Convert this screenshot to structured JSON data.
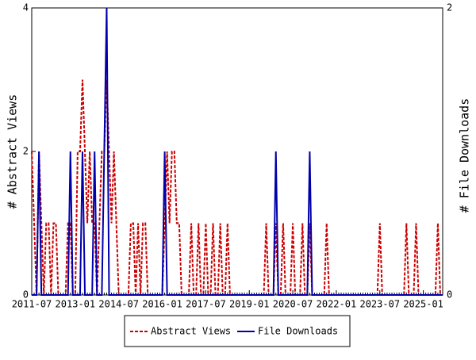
{
  "chart_data": {
    "type": "line",
    "x": [
      "2011-07",
      "2011-08",
      "2011-09",
      "2011-10",
      "2011-11",
      "2011-12",
      "2012-01",
      "2012-02",
      "2012-03",
      "2012-04",
      "2012-05",
      "2012-06",
      "2012-07",
      "2012-08",
      "2012-09",
      "2012-10",
      "2012-11",
      "2012-12",
      "2013-01",
      "2013-02",
      "2013-03",
      "2013-04",
      "2013-05",
      "2013-06",
      "2013-07",
      "2013-08",
      "2013-09",
      "2013-10",
      "2013-11",
      "2013-12",
      "2014-01",
      "2014-02",
      "2014-03",
      "2014-04",
      "2014-05",
      "2014-06",
      "2014-07",
      "2014-08",
      "2014-09",
      "2014-10",
      "2014-11",
      "2014-12",
      "2015-01",
      "2015-02",
      "2015-03",
      "2015-04",
      "2015-05",
      "2015-06",
      "2015-07",
      "2015-08",
      "2015-09",
      "2015-10",
      "2015-11",
      "2015-12",
      "2016-01",
      "2016-02",
      "2016-03",
      "2016-04",
      "2016-05",
      "2016-06",
      "2016-07",
      "2016-08",
      "2016-09",
      "2016-10",
      "2016-11",
      "2016-12",
      "2017-01",
      "2017-02",
      "2017-03",
      "2017-04",
      "2017-05",
      "2017-06",
      "2017-07",
      "2017-08",
      "2017-09",
      "2017-10",
      "2017-11",
      "2017-12",
      "2018-01",
      "2018-02",
      "2018-03",
      "2018-04",
      "2018-05",
      "2018-06",
      "2018-07",
      "2018-08",
      "2018-09",
      "2018-10",
      "2018-11",
      "2018-12",
      "2019-01",
      "2019-02",
      "2019-03",
      "2019-04",
      "2019-05",
      "2019-06",
      "2019-07",
      "2019-08",
      "2019-09",
      "2019-10",
      "2019-11",
      "2019-12",
      "2020-01",
      "2020-02",
      "2020-03",
      "2020-04",
      "2020-05",
      "2020-06",
      "2020-07",
      "2020-08",
      "2020-09",
      "2020-10",
      "2020-11",
      "2020-12",
      "2021-01",
      "2021-02",
      "2021-03",
      "2021-04",
      "2021-05",
      "2021-06",
      "2021-07",
      "2021-08",
      "2021-09",
      "2021-10",
      "2021-11",
      "2021-12",
      "2022-01",
      "2022-02",
      "2022-03",
      "2022-04",
      "2022-05",
      "2022-06",
      "2022-07",
      "2022-08",
      "2022-09",
      "2022-10",
      "2022-11",
      "2022-12",
      "2023-01",
      "2023-02",
      "2023-03",
      "2023-04",
      "2023-05",
      "2023-06",
      "2023-07",
      "2023-08",
      "2023-09",
      "2023-10",
      "2023-11",
      "2023-12",
      "2024-01",
      "2024-02",
      "2024-03",
      "2024-04",
      "2024-05",
      "2024-06",
      "2024-07",
      "2024-08",
      "2024-09",
      "2024-10",
      "2024-11",
      "2024-12",
      "2025-01",
      "2025-02",
      "2025-03",
      "2025-04",
      "2025-05",
      "2025-06",
      "2025-07",
      "2025-08",
      "2025-09"
    ],
    "xticks": [
      "2011-07",
      "2013-01",
      "2014-07",
      "2016-01",
      "2017-07",
      "2019-01",
      "2020-07",
      "2022-01",
      "2023-07",
      "2025-01"
    ],
    "ylabel": "# Abstract Views",
    "y2label": "# File Downloads",
    "ylim": [
      0,
      4
    ],
    "yticks": [
      0,
      2,
      4
    ],
    "y2lim": [
      0,
      2
    ],
    "y2ticks": [
      0,
      2
    ],
    "series": [
      {
        "name": "Abstract Views",
        "color": "#cc0000",
        "dashed": true,
        "values": [
          2,
          1,
          0,
          2,
          1,
          0,
          1,
          1,
          0,
          1,
          1,
          0,
          0,
          0,
          0,
          1,
          1,
          0,
          0,
          2,
          2,
          3,
          2,
          1,
          2,
          1,
          1,
          0,
          1,
          2,
          2,
          3,
          2,
          1,
          2,
          1,
          0,
          0,
          0,
          0,
          0,
          1,
          1,
          0,
          1,
          0,
          1,
          1,
          0,
          0,
          0,
          0,
          0,
          0,
          0,
          1,
          2,
          1,
          2,
          2,
          1,
          1,
          0,
          0,
          0,
          0,
          1,
          0,
          0,
          1,
          0,
          0,
          1,
          0,
          0,
          1,
          0,
          0,
          1,
          0,
          0,
          1,
          0,
          0,
          0,
          0,
          0,
          0,
          0,
          0,
          0,
          0,
          0,
          0,
          0,
          0,
          0,
          1,
          0,
          0,
          0,
          1,
          0,
          0,
          1,
          0,
          0,
          0,
          1,
          0,
          0,
          0,
          1,
          0,
          0,
          1,
          0,
          0,
          0,
          0,
          0,
          0,
          1,
          0,
          0,
          0,
          0,
          0,
          0,
          0,
          0,
          0,
          0,
          0,
          0,
          0,
          0,
          0,
          0,
          0,
          0,
          0,
          0,
          0,
          1,
          0,
          0,
          0,
          0,
          0,
          0,
          0,
          0,
          0,
          0,
          1,
          0,
          0,
          0,
          1,
          0,
          0,
          0,
          0,
          0,
          0,
          0,
          0,
          1,
          0,
          0
        ]
      },
      {
        "name": "File Downloads",
        "color": "#0000aa",
        "axis": "y2",
        "values": [
          0,
          0,
          0,
          1,
          0,
          0,
          0,
          0,
          0,
          0,
          0,
          0,
          0,
          0,
          0,
          0,
          1,
          0,
          0,
          0,
          0,
          1,
          0,
          0,
          0,
          0,
          1,
          0,
          0,
          0,
          1,
          2,
          0,
          0,
          0,
          0,
          0,
          0,
          0,
          0,
          0,
          0,
          0,
          0,
          0,
          0,
          0,
          0,
          0,
          0,
          0,
          0,
          0,
          0,
          0,
          1,
          0,
          0,
          0,
          0,
          0,
          0,
          0,
          0,
          0,
          0,
          0,
          0,
          0,
          0,
          0,
          0,
          0,
          0,
          0,
          0,
          0,
          0,
          0,
          0,
          0,
          0,
          0,
          0,
          0,
          0,
          0,
          0,
          0,
          0,
          0,
          0,
          0,
          0,
          0,
          0,
          0,
          0,
          0,
          0,
          0,
          1,
          0,
          0,
          0,
          0,
          0,
          0,
          0,
          0,
          0,
          0,
          0,
          0,
          0,
          1,
          0,
          0,
          0,
          0,
          0,
          0,
          0,
          0,
          0,
          0,
          0,
          0,
          0,
          0,
          0,
          0,
          0,
          0,
          0,
          0,
          0,
          0,
          0,
          0,
          0,
          0,
          0,
          0,
          0,
          0,
          0,
          0,
          0,
          0,
          0,
          0,
          0,
          0,
          0,
          0,
          0,
          0,
          0,
          0,
          0,
          0,
          0,
          0,
          0,
          0,
          0,
          0,
          0,
          0,
          0
        ]
      }
    ]
  }
}
